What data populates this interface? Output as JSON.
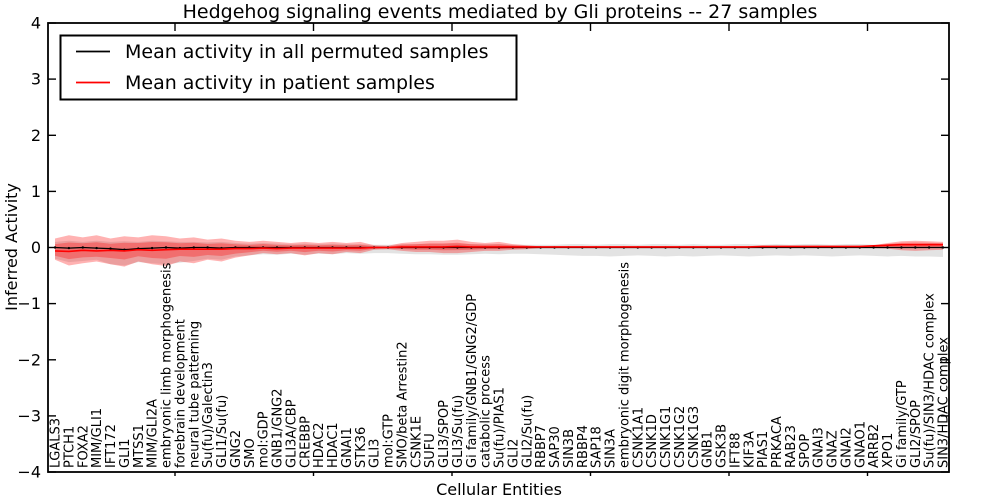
{
  "chart_data": {
    "type": "line",
    "title": "Hedgehog signaling events mediated by Gli proteins -- 27 samples",
    "xlabel": "Cellular Entities",
    "ylabel": "Inferred Activity",
    "ylim": [
      -4,
      4
    ],
    "yticks": [
      4,
      3,
      2,
      1,
      0,
      -1,
      -2,
      -3,
      -4
    ],
    "ytick_labels": [
      "4",
      "3",
      "2",
      "1",
      "0",
      "−1",
      "−2",
      "−3",
      "−4"
    ],
    "grid": false,
    "legend_position": "upper left",
    "legend": [
      {
        "label": "Mean activity in all permuted samples",
        "color": "#000000"
      },
      {
        "label": "Mean activity in patient samples",
        "color": "#ff0000"
      }
    ],
    "categories": [
      "LGALS3",
      "PTCH1",
      "FOXA2",
      "MIM/GLI1",
      "IFT172",
      "GLI1",
      "MTSS1",
      "MIM/GLI2A",
      "embryonic limb morphogenesis",
      "forebrain development",
      "neural tube patterning",
      "Su(fu)/Galectin3",
      "GLI1/Su(fu)",
      "GNG2",
      "SMO",
      "mol:GDP",
      "GNB1/GNG2",
      "GLI3A/CBP",
      "CREBBP",
      "HDAC2",
      "HDAC1",
      "GNAI1",
      "STK36",
      "GLI3",
      "mol:GTP",
      "SMO/beta Arrestin2",
      "CSNK1E",
      "SUFU",
      "GLI3/SPOP",
      "GLI3/Su(fu)",
      "Gi family/GNB1/GNG2/GDP",
      "catabolic process",
      "Su(fu)/PIAS1",
      "GLI2",
      "GLI2/Su(fu)",
      "RBBP7",
      "SAP30",
      "SIN3B",
      "RBBP4",
      "SAP18",
      "SIN3A",
      "embryonic digit morphogenesis",
      "CSNK1A1",
      "CSNK1D",
      "CSNK1G1",
      "CSNK1G2",
      "CSNK1G3",
      "GNB1",
      "GSK3B",
      "IFT88",
      "KIF3A",
      "PIAS1",
      "PRKACA",
      "RAB23",
      "SPOP",
      "GNAI3",
      "GNAZ",
      "GNAI2",
      "GNAO1",
      "ARRB2",
      "XPO1",
      "Gi family/GTP",
      "GLI2/SPOP",
      "Su(fu)/SIN3/HDAC complex",
      "SIN3/HDAC complex"
    ],
    "series": [
      {
        "name": "Mean activity in all permuted samples",
        "color": "#000000",
        "band_color": "#000000",
        "band_opacity": 0.11,
        "values": [
          0,
          -0.01,
          0,
          -0.01,
          -0.02,
          -0.04,
          -0.02,
          -0.01,
          0,
          -0.01,
          0,
          0,
          -0.01,
          0,
          0,
          0,
          0,
          0,
          0,
          0,
          0,
          0,
          0,
          0,
          0,
          0,
          0,
          0,
          0,
          0,
          0,
          0,
          0,
          0,
          0,
          0,
          0,
          0,
          0,
          0,
          0,
          0,
          0,
          0,
          0,
          0,
          0,
          0,
          0,
          0,
          0,
          0,
          0,
          0,
          0,
          0,
          0,
          0,
          0,
          0,
          0,
          0,
          0,
          0,
          0
        ],
        "band_upper": [
          0.1,
          0.12,
          0.1,
          0.12,
          0.1,
          0.11,
          0.1,
          0.12,
          0.11,
          0.1,
          0.1,
          0.09,
          0.1,
          0.08,
          0.07,
          0.08,
          0.07,
          0.06,
          0.07,
          0.06,
          0.07,
          0.06,
          0.06,
          0.05,
          0.05,
          0.06,
          0.06,
          0.07,
          0.07,
          0.07,
          0.06,
          0.06,
          0.06,
          0.05,
          0.05,
          0.05,
          0.05,
          0.06,
          0.06,
          0.05,
          0.06,
          0.06,
          0.05,
          0.06,
          0.06,
          0.05,
          0.06,
          0.05,
          0.05,
          0.06,
          0.06,
          0.05,
          0.06,
          0.05,
          0.06,
          0.06,
          0.05,
          0.06,
          0.06,
          0.05,
          0.06,
          0.06,
          0.06,
          0.07,
          0.07
        ],
        "band_lower": [
          -0.2,
          -0.26,
          -0.24,
          -0.22,
          -0.3,
          -0.32,
          -0.26,
          -0.28,
          -0.3,
          -0.27,
          -0.24,
          -0.2,
          -0.22,
          -0.16,
          -0.14,
          -0.12,
          -0.13,
          -0.11,
          -0.13,
          -0.11,
          -0.12,
          -0.1,
          -0.11,
          -0.1,
          -0.1,
          -0.11,
          -0.12,
          -0.12,
          -0.13,
          -0.13,
          -0.12,
          -0.11,
          -0.12,
          -0.11,
          -0.11,
          -0.12,
          -0.13,
          -0.14,
          -0.15,
          -0.15,
          -0.16,
          -0.15,
          -0.14,
          -0.15,
          -0.16,
          -0.15,
          -0.16,
          -0.15,
          -0.14,
          -0.15,
          -0.16,
          -0.15,
          -0.14,
          -0.15,
          -0.14,
          -0.15,
          -0.16,
          -0.15,
          -0.14,
          -0.15,
          -0.16,
          -0.15,
          -0.16,
          -0.16,
          -0.17
        ]
      },
      {
        "name": "Mean activity in patient samples",
        "color": "#ff0000",
        "band_color": "#ff0000",
        "band_opacity": 0.3,
        "values": [
          -0.06,
          -0.07,
          -0.05,
          -0.06,
          -0.05,
          -0.06,
          -0.04,
          -0.05,
          -0.04,
          -0.03,
          -0.03,
          -0.03,
          -0.03,
          -0.02,
          -0.02,
          -0.01,
          -0.02,
          -0.01,
          -0.01,
          -0.01,
          -0.01,
          -0.01,
          -0.01,
          0,
          0,
          0.01,
          0.01,
          0.01,
          0.01,
          0.02,
          0.01,
          0.01,
          0.01,
          0.01,
          0.01,
          0.01,
          0.01,
          0.01,
          0.01,
          0.01,
          0.01,
          0.01,
          0.01,
          0.01,
          0.01,
          0.01,
          0.01,
          0.01,
          0.01,
          0.01,
          0.01,
          0.02,
          0.02,
          0.02,
          0.02,
          0.02,
          0.02,
          0.02,
          0.02,
          0.03,
          0.04,
          0.05,
          0.05,
          0.05,
          0.05
        ],
        "band_upper": [
          0.16,
          0.22,
          0.18,
          0.22,
          0.16,
          0.2,
          0.18,
          0.22,
          0.2,
          0.16,
          0.18,
          0.14,
          0.16,
          0.12,
          0.1,
          0.12,
          0.1,
          0.08,
          0.1,
          0.08,
          0.1,
          0.08,
          0.1,
          0.04,
          0.03,
          0.08,
          0.1,
          0.12,
          0.12,
          0.14,
          0.1,
          0.08,
          0.1,
          0.06,
          0.04,
          0.02,
          0.02,
          0.02,
          0.02,
          0.02,
          0.02,
          0.02,
          0.02,
          0.02,
          0.02,
          0.02,
          0.02,
          0.02,
          0.02,
          0.02,
          0.02,
          0.02,
          0.02,
          0.02,
          0.02,
          0.02,
          0.02,
          0.02,
          0.03,
          0.04,
          0.08,
          0.11,
          0.12,
          0.11,
          0.1
        ],
        "band_lower": [
          -0.22,
          -0.32,
          -0.28,
          -0.25,
          -0.3,
          -0.34,
          -0.25,
          -0.3,
          -0.33,
          -0.25,
          -0.28,
          -0.22,
          -0.25,
          -0.18,
          -0.14,
          -0.1,
          -0.12,
          -0.1,
          -0.14,
          -0.1,
          -0.12,
          -0.08,
          -0.1,
          -0.04,
          -0.03,
          -0.06,
          -0.08,
          -0.08,
          -0.1,
          -0.1,
          -0.08,
          -0.06,
          -0.06,
          -0.04,
          -0.03,
          -0.01,
          -0.01,
          -0.01,
          -0.01,
          -0.01,
          -0.01,
          -0.01,
          -0.01,
          -0.01,
          -0.01,
          -0.01,
          -0.01,
          -0.01,
          -0.01,
          -0.01,
          -0.01,
          0,
          0,
          0,
          0,
          0,
          0,
          0,
          -0.01,
          -0.01,
          -0.02,
          -0.05,
          -0.06,
          -0.05,
          -0.04
        ]
      }
    ]
  },
  "colors": {
    "background": "#ffffff",
    "axis": "#000000",
    "permuted_line": "#000000",
    "patient_line": "#ff0000"
  }
}
